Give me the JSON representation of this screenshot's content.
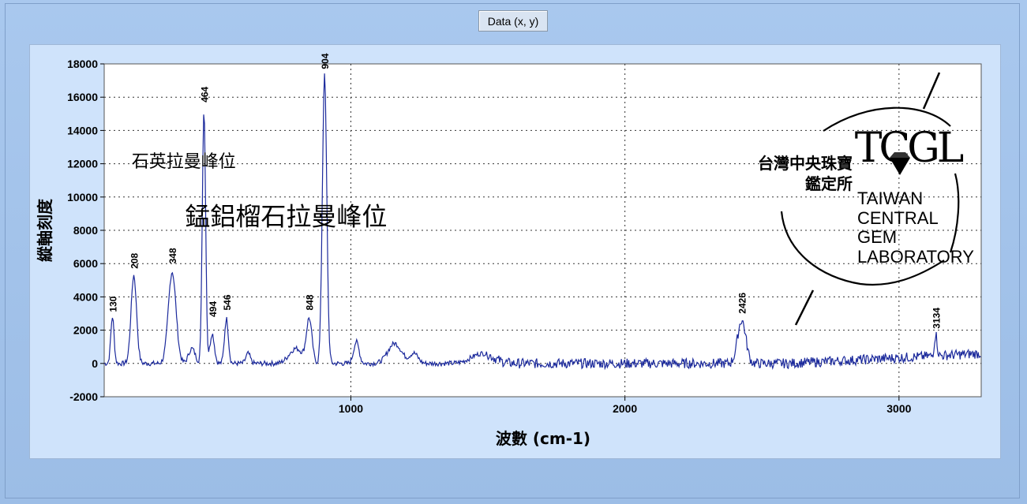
{
  "toolbar": {
    "data_button_label": "Data (x, y)"
  },
  "chart_data": {
    "type": "line",
    "xlabel": "波數 (cm-1)",
    "ylabel": "縱軸刻度",
    "xlim": [
      100,
      3300
    ],
    "ylim": [
      -2000,
      18000
    ],
    "x_ticks": [
      "1000",
      "2000",
      "3000"
    ],
    "y_ticks": [
      "18000",
      "16000",
      "14000",
      "12000",
      "10000",
      "8000",
      "6000",
      "4000",
      "2000",
      "0",
      "-2000"
    ],
    "grid": true,
    "annotations": [
      {
        "text": "石英拉曼峰位",
        "x": 200,
        "y": 11800
      },
      {
        "text": "錳鋁榴石拉曼峰位",
        "x": 395,
        "y": 8300
      }
    ],
    "peak_labels": [
      {
        "text": "130",
        "x": 130,
        "y": 2900
      },
      {
        "text": "208",
        "x": 208,
        "y": 5500
      },
      {
        "text": "348",
        "x": 348,
        "y": 5800
      },
      {
        "text": "464",
        "x": 464,
        "y": 15500
      },
      {
        "text": "494",
        "x": 494,
        "y": 2600
      },
      {
        "text": "546",
        "x": 546,
        "y": 3000
      },
      {
        "text": "848",
        "x": 848,
        "y": 3000
      },
      {
        "text": "904",
        "x": 904,
        "y": 17500
      },
      {
        "text": "2426",
        "x": 2426,
        "y": 2800
      },
      {
        "text": "3134",
        "x": 3134,
        "y": 1900
      }
    ],
    "series": [
      {
        "color": "#1c2a9c",
        "peaks": [
          {
            "x": 130,
            "y": 2800,
            "w": 6
          },
          {
            "x": 208,
            "y": 5300,
            "w": 10
          },
          {
            "x": 348,
            "y": 5500,
            "w": 14
          },
          {
            "x": 420,
            "y": 900,
            "w": 12
          },
          {
            "x": 464,
            "y": 15300,
            "w": 6
          },
          {
            "x": 494,
            "y": 1800,
            "w": 8
          },
          {
            "x": 546,
            "y": 2700,
            "w": 7
          },
          {
            "x": 625,
            "y": 600,
            "w": 8
          },
          {
            "x": 800,
            "y": 900,
            "w": 25
          },
          {
            "x": 848,
            "y": 2600,
            "w": 10
          },
          {
            "x": 904,
            "y": 17300,
            "w": 8
          },
          {
            "x": 1020,
            "y": 1300,
            "w": 10
          },
          {
            "x": 1160,
            "y": 1200,
            "w": 25
          },
          {
            "x": 1230,
            "y": 600,
            "w": 15
          },
          {
            "x": 1480,
            "y": 600,
            "w": 40
          },
          {
            "x": 2426,
            "y": 2600,
            "w": 15
          },
          {
            "x": 3134,
            "y": 1300,
            "w": 5
          }
        ],
        "noise_amplitude": 500
      }
    ]
  },
  "watermark": {
    "brand_letters": "TCGL",
    "name_lines": [
      "TAIWAN",
      "CENTRAL",
      "GEM",
      "LABORATORY"
    ],
    "chinese_line1": "台灣中央珠寶",
    "chinese_line2": "鑑定所"
  }
}
